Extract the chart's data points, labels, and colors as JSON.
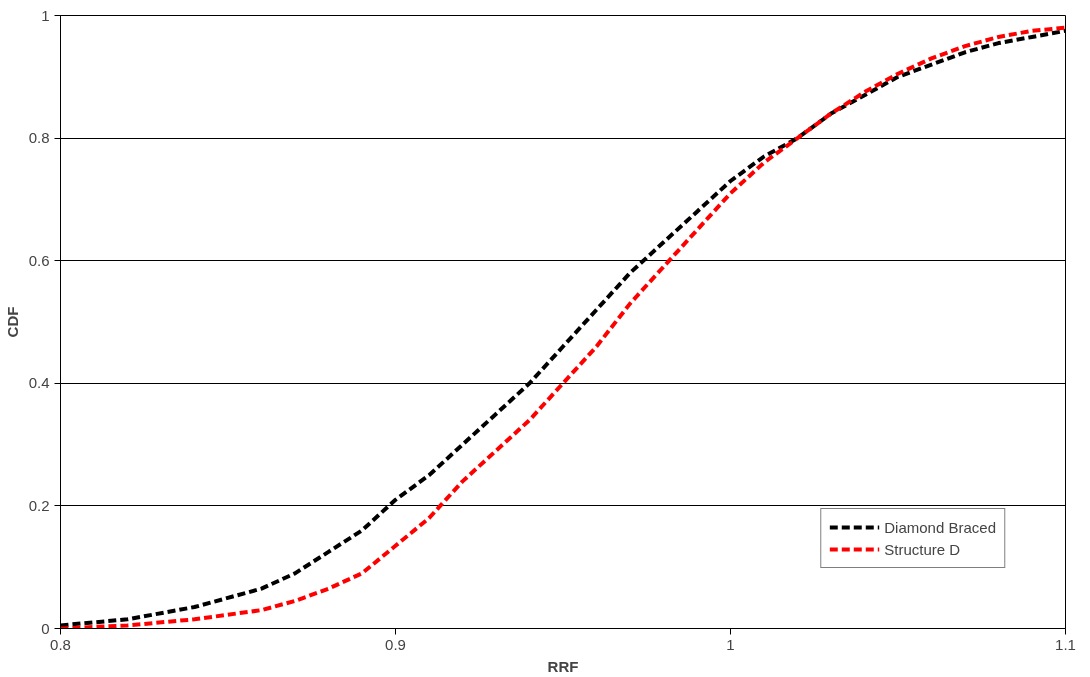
{
  "chart_data": {
    "type": "line",
    "xlabel": "RRF",
    "ylabel": "CDF",
    "x": [
      0.8,
      0.82,
      0.84,
      0.86,
      0.87,
      0.88,
      0.89,
      0.9,
      0.91,
      0.92,
      0.93,
      0.94,
      0.95,
      0.96,
      0.97,
      0.98,
      0.99,
      1.0,
      1.01,
      1.02,
      1.03,
      1.04,
      1.05,
      1.06,
      1.07,
      1.08,
      1.09,
      1.1
    ],
    "series": [
      {
        "name": "Diamond Braced",
        "color": "#000000",
        "values": [
          0.005,
          0.015,
          0.035,
          0.065,
          0.09,
          0.125,
          0.16,
          0.21,
          0.25,
          0.3,
          0.35,
          0.4,
          0.46,
          0.52,
          0.58,
          0.63,
          0.68,
          0.73,
          0.77,
          0.8,
          0.84,
          0.87,
          0.9,
          0.92,
          0.94,
          0.955,
          0.965,
          0.975
        ]
      },
      {
        "name": "Structure D",
        "color": "#ff0000",
        "values": [
          0.0,
          0.005,
          0.015,
          0.03,
          0.045,
          0.065,
          0.09,
          0.135,
          0.18,
          0.24,
          0.29,
          0.34,
          0.4,
          0.46,
          0.53,
          0.59,
          0.65,
          0.71,
          0.76,
          0.8,
          0.84,
          0.875,
          0.905,
          0.93,
          0.95,
          0.965,
          0.975,
          0.98
        ]
      }
    ],
    "xlim": [
      0.8,
      1.1
    ],
    "xticks": [
      0.8,
      0.9,
      1,
      1.1
    ],
    "ylim": [
      0,
      1
    ],
    "yticks": [
      0,
      0.2,
      0.4,
      0.6,
      0.8,
      1
    ],
    "grid": "y",
    "legend": "bottom right",
    "line_style": "dashed",
    "marker": "none"
  }
}
